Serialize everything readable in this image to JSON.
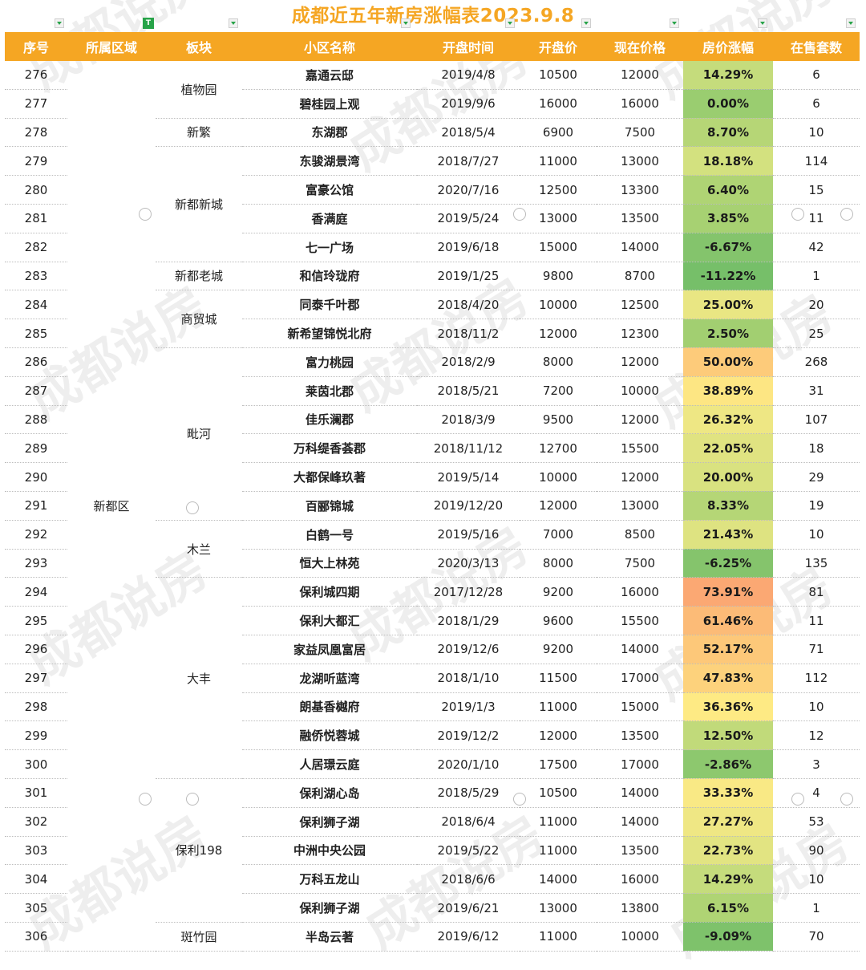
{
  "title": "成都近五年新房涨幅表2023.9.8",
  "headers": [
    "序号",
    "所属区域",
    "板块",
    "小区名称",
    "开盘时间",
    "开盘价",
    "现在价格",
    "房价涨幅",
    "在售套数"
  ],
  "region": "新都区",
  "watermark": "成都说房",
  "blocks": [
    {
      "name": "植物园",
      "span": 2
    },
    {
      "name": "新繁",
      "span": 1
    },
    {
      "name": "新都新城",
      "span": 4
    },
    {
      "name": "新都老城",
      "span": 1
    },
    {
      "name": "商贸城",
      "span": 2
    },
    {
      "name": "毗河",
      "span": 6
    },
    {
      "name": "木兰",
      "span": 2
    },
    {
      "name": "大丰",
      "span": 7
    },
    {
      "name": "保利198",
      "span": 5
    },
    {
      "name": "斑竹园",
      "span": 1
    }
  ],
  "rows": [
    {
      "no": "276",
      "name": "嘉通云邸",
      "date": "2019/4/8",
      "open": "10500",
      "now": "12000",
      "rate": "14.29%",
      "stock": "6",
      "color": "#c5dc7c"
    },
    {
      "no": "277",
      "name": "碧桂园上观",
      "date": "2019/9/6",
      "open": "16000",
      "now": "16000",
      "rate": "0.00%",
      "stock": "6",
      "color": "#9acd70"
    },
    {
      "no": "278",
      "name": "东湖郡",
      "date": "2018/5/4",
      "open": "6900",
      "now": "7500",
      "rate": "8.70%",
      "stock": "10",
      "color": "#b6d676"
    },
    {
      "no": "279",
      "name": "东骏湖景湾",
      "date": "2018/7/27",
      "open": "11000",
      "now": "13000",
      "rate": "18.18%",
      "stock": "114",
      "color": "#d3e17f"
    },
    {
      "no": "280",
      "name": "富豪公馆",
      "date": "2020/7/16",
      "open": "12500",
      "now": "13300",
      "rate": "6.40%",
      "stock": "15",
      "color": "#afd474"
    },
    {
      "no": "281",
      "name": "香满庭",
      "date": "2019/5/24",
      "open": "13000",
      "now": "13500",
      "rate": "3.85%",
      "stock": "11",
      "color": "#a7d172"
    },
    {
      "no": "282",
      "name": "七一广场",
      "date": "2019/6/18",
      "open": "15000",
      "now": "14000",
      "rate": "-6.67%",
      "stock": "42",
      "color": "#84c46c"
    },
    {
      "no": "283",
      "name": "和信玲珑府",
      "date": "2019/1/25",
      "open": "9800",
      "now": "8700",
      "rate": "-11.22%",
      "stock": "1",
      "color": "#76bf69"
    },
    {
      "no": "284",
      "name": "同泰千叶郡",
      "date": "2018/4/20",
      "open": "10000",
      "now": "12500",
      "rate": "25.00%",
      "stock": "20",
      "color": "#e9e683"
    },
    {
      "no": "285",
      "name": "新希望锦悦北府",
      "date": "2018/11/2",
      "open": "12000",
      "now": "12300",
      "rate": "2.50%",
      "stock": "25",
      "color": "#a2cf71"
    },
    {
      "no": "286",
      "name": "富力桃园",
      "date": "2018/2/9",
      "open": "8000",
      "now": "12000",
      "rate": "50.00%",
      "stock": "268",
      "color": "#fdcb7a"
    },
    {
      "no": "287",
      "name": "莱茵北郡",
      "date": "2018/5/21",
      "open": "7200",
      "now": "10000",
      "rate": "38.89%",
      "stock": "31",
      "color": "#fde683"
    },
    {
      "no": "288",
      "name": "佳乐澜郡",
      "date": "2018/3/9",
      "open": "9500",
      "now": "12000",
      "rate": "26.32%",
      "stock": "107",
      "color": "#eee784"
    },
    {
      "no": "289",
      "name": "万科缇香荟郡",
      "date": "2018/11/12",
      "open": "12700",
      "now": "15500",
      "rate": "22.05%",
      "stock": "18",
      "color": "#e0e381"
    },
    {
      "no": "290",
      "name": "大都保峰玖著",
      "date": "2019/5/14",
      "open": "10000",
      "now": "12000",
      "rate": "20.00%",
      "stock": "29",
      "color": "#d9e280"
    },
    {
      "no": "291",
      "name": "百郦锦城",
      "date": "2019/12/20",
      "open": "12000",
      "now": "13000",
      "rate": "8.33%",
      "stock": "19",
      "color": "#b5d676"
    },
    {
      "no": "292",
      "name": "白鹤一号",
      "date": "2019/5/16",
      "open": "7000",
      "now": "8500",
      "rate": "21.43%",
      "stock": "10",
      "color": "#dee381"
    },
    {
      "no": "293",
      "name": "恒大上林苑",
      "date": "2020/3/13",
      "open": "8000",
      "now": "7500",
      "rate": "-6.25%",
      "stock": "135",
      "color": "#85c46c"
    },
    {
      "no": "294",
      "name": "保利城四期",
      "date": "2017/12/28",
      "open": "9200",
      "now": "16000",
      "rate": "73.91%",
      "stock": "81",
      "color": "#fba873"
    },
    {
      "no": "295",
      "name": "保利大都汇",
      "date": "2018/1/29",
      "open": "9600",
      "now": "15500",
      "rate": "61.46%",
      "stock": "11",
      "color": "#fcbb77"
    },
    {
      "no": "296",
      "name": "家益凤凰富居",
      "date": "2019/12/6",
      "open": "9200",
      "now": "14000",
      "rate": "52.17%",
      "stock": "71",
      "color": "#fdc879"
    },
    {
      "no": "297",
      "name": "龙湖听蓝湾",
      "date": "2018/1/10",
      "open": "11500",
      "now": "17000",
      "rate": "47.83%",
      "stock": "112",
      "color": "#fdd27c"
    },
    {
      "no": "298",
      "name": "朗基香樾府",
      "date": "2019/1/3",
      "open": "11000",
      "now": "15000",
      "rate": "36.36%",
      "stock": "10",
      "color": "#feea84"
    },
    {
      "no": "299",
      "name": "融侨悦蓉城",
      "date": "2019/12/2",
      "open": "12000",
      "now": "13500",
      "rate": "12.50%",
      "stock": "12",
      "color": "#c1da7a"
    },
    {
      "no": "300",
      "name": "人居璟云庭",
      "date": "2020/1/10",
      "open": "17500",
      "now": "17000",
      "rate": "-2.86%",
      "stock": "3",
      "color": "#8dc86e"
    },
    {
      "no": "301",
      "name": "保利湖心岛",
      "date": "2018/5/29",
      "open": "10500",
      "now": "14000",
      "rate": "33.33%",
      "stock": "4",
      "color": "#f9e985"
    },
    {
      "no": "302",
      "name": "保利狮子湖",
      "date": "2018/6/4",
      "open": "11000",
      "now": "14000",
      "rate": "27.27%",
      "stock": "53",
      "color": "#efe784"
    },
    {
      "no": "303",
      "name": "中洲中央公园",
      "date": "2019/5/22",
      "open": "11000",
      "now": "13500",
      "rate": "22.73%",
      "stock": "90",
      "color": "#e2e482"
    },
    {
      "no": "304",
      "name": "万科五龙山",
      "date": "2018/6/6",
      "open": "14000",
      "now": "16000",
      "rate": "14.29%",
      "stock": "10",
      "color": "#c5dc7c"
    },
    {
      "no": "305",
      "name": "保利狮子湖",
      "date": "2019/6/21",
      "open": "13000",
      "now": "13800",
      "rate": "6.15%",
      "stock": "1",
      "color": "#afd474"
    },
    {
      "no": "306",
      "name": "半岛云著",
      "date": "2019/6/12",
      "open": "11000",
      "now": "10000",
      "rate": "-9.09%",
      "stock": "70",
      "color": "#7ec26b"
    }
  ]
}
